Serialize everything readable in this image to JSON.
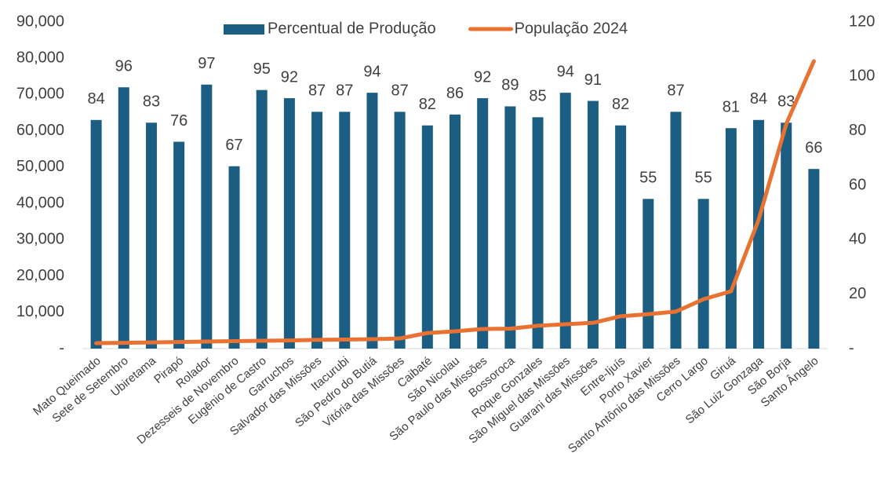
{
  "chart_data": {
    "type": "bar_line",
    "categories": [
      "Mato Queimado",
      "Sete de Setembro",
      "Ubiretama",
      "Pirapó",
      "Rolador",
      "Dezesseis de Novembro",
      "Eugênio de Castro",
      "Garruchos",
      "Salvador das Missões",
      "Itacurubi",
      "São Pedro do Butiá",
      "Vitória das Missões",
      "Caibaté",
      "São Nicolau",
      "São Paulo das Missões",
      "Bossoroca",
      "Roque Gonzales",
      "São Miguel das Missões",
      "Guarani das Missões",
      "Entre-Ijuís",
      "Porto Xavier",
      "Santo Antônio das Missões",
      "Cerro Largo",
      "Giruá",
      "São Luiz Gonzaga",
      "São Borja",
      "Santo Ângelo"
    ],
    "series": [
      {
        "name": "Percentual de Produção",
        "type": "bar",
        "axis": "y2",
        "color": "#1b5e82",
        "values": [
          84,
          96,
          83,
          76,
          97,
          67,
          95,
          92,
          87,
          87,
          94,
          87,
          82,
          86,
          92,
          89,
          85,
          94,
          91,
          82,
          55,
          87,
          55,
          81,
          84,
          83,
          66
        ]
      },
      {
        "name": "População 2024",
        "type": "line",
        "color": "#e97132",
        "values": [
          1500,
          1600,
          1700,
          1800,
          1950,
          2050,
          2150,
          2250,
          2400,
          2500,
          2600,
          2800,
          4300,
          4750,
          5400,
          5500,
          6300,
          6700,
          7100,
          8900,
          9500,
          10200,
          13600,
          15800,
          35500,
          61900,
          79200
        ]
      }
    ],
    "ylim": [
      0,
      90000
    ],
    "yticks": [
      {
        "value": 0,
        "label": "-"
      },
      {
        "value": 10000,
        "label": "10,000"
      },
      {
        "value": 20000,
        "label": "20,000"
      },
      {
        "value": 30000,
        "label": "30,000"
      },
      {
        "value": 40000,
        "label": "40,000"
      },
      {
        "value": 50000,
        "label": "50,000"
      },
      {
        "value": 60000,
        "label": "60,000"
      },
      {
        "value": 70000,
        "label": "70,000"
      },
      {
        "value": 80000,
        "label": "80,000"
      },
      {
        "value": 90000,
        "label": "90,000"
      }
    ],
    "y2lim": [
      0,
      120
    ],
    "y2ticks": [
      {
        "value": 0,
        "label": "-"
      },
      20,
      40,
      60,
      80,
      100,
      120
    ],
    "legend": "top",
    "grid": false
  }
}
